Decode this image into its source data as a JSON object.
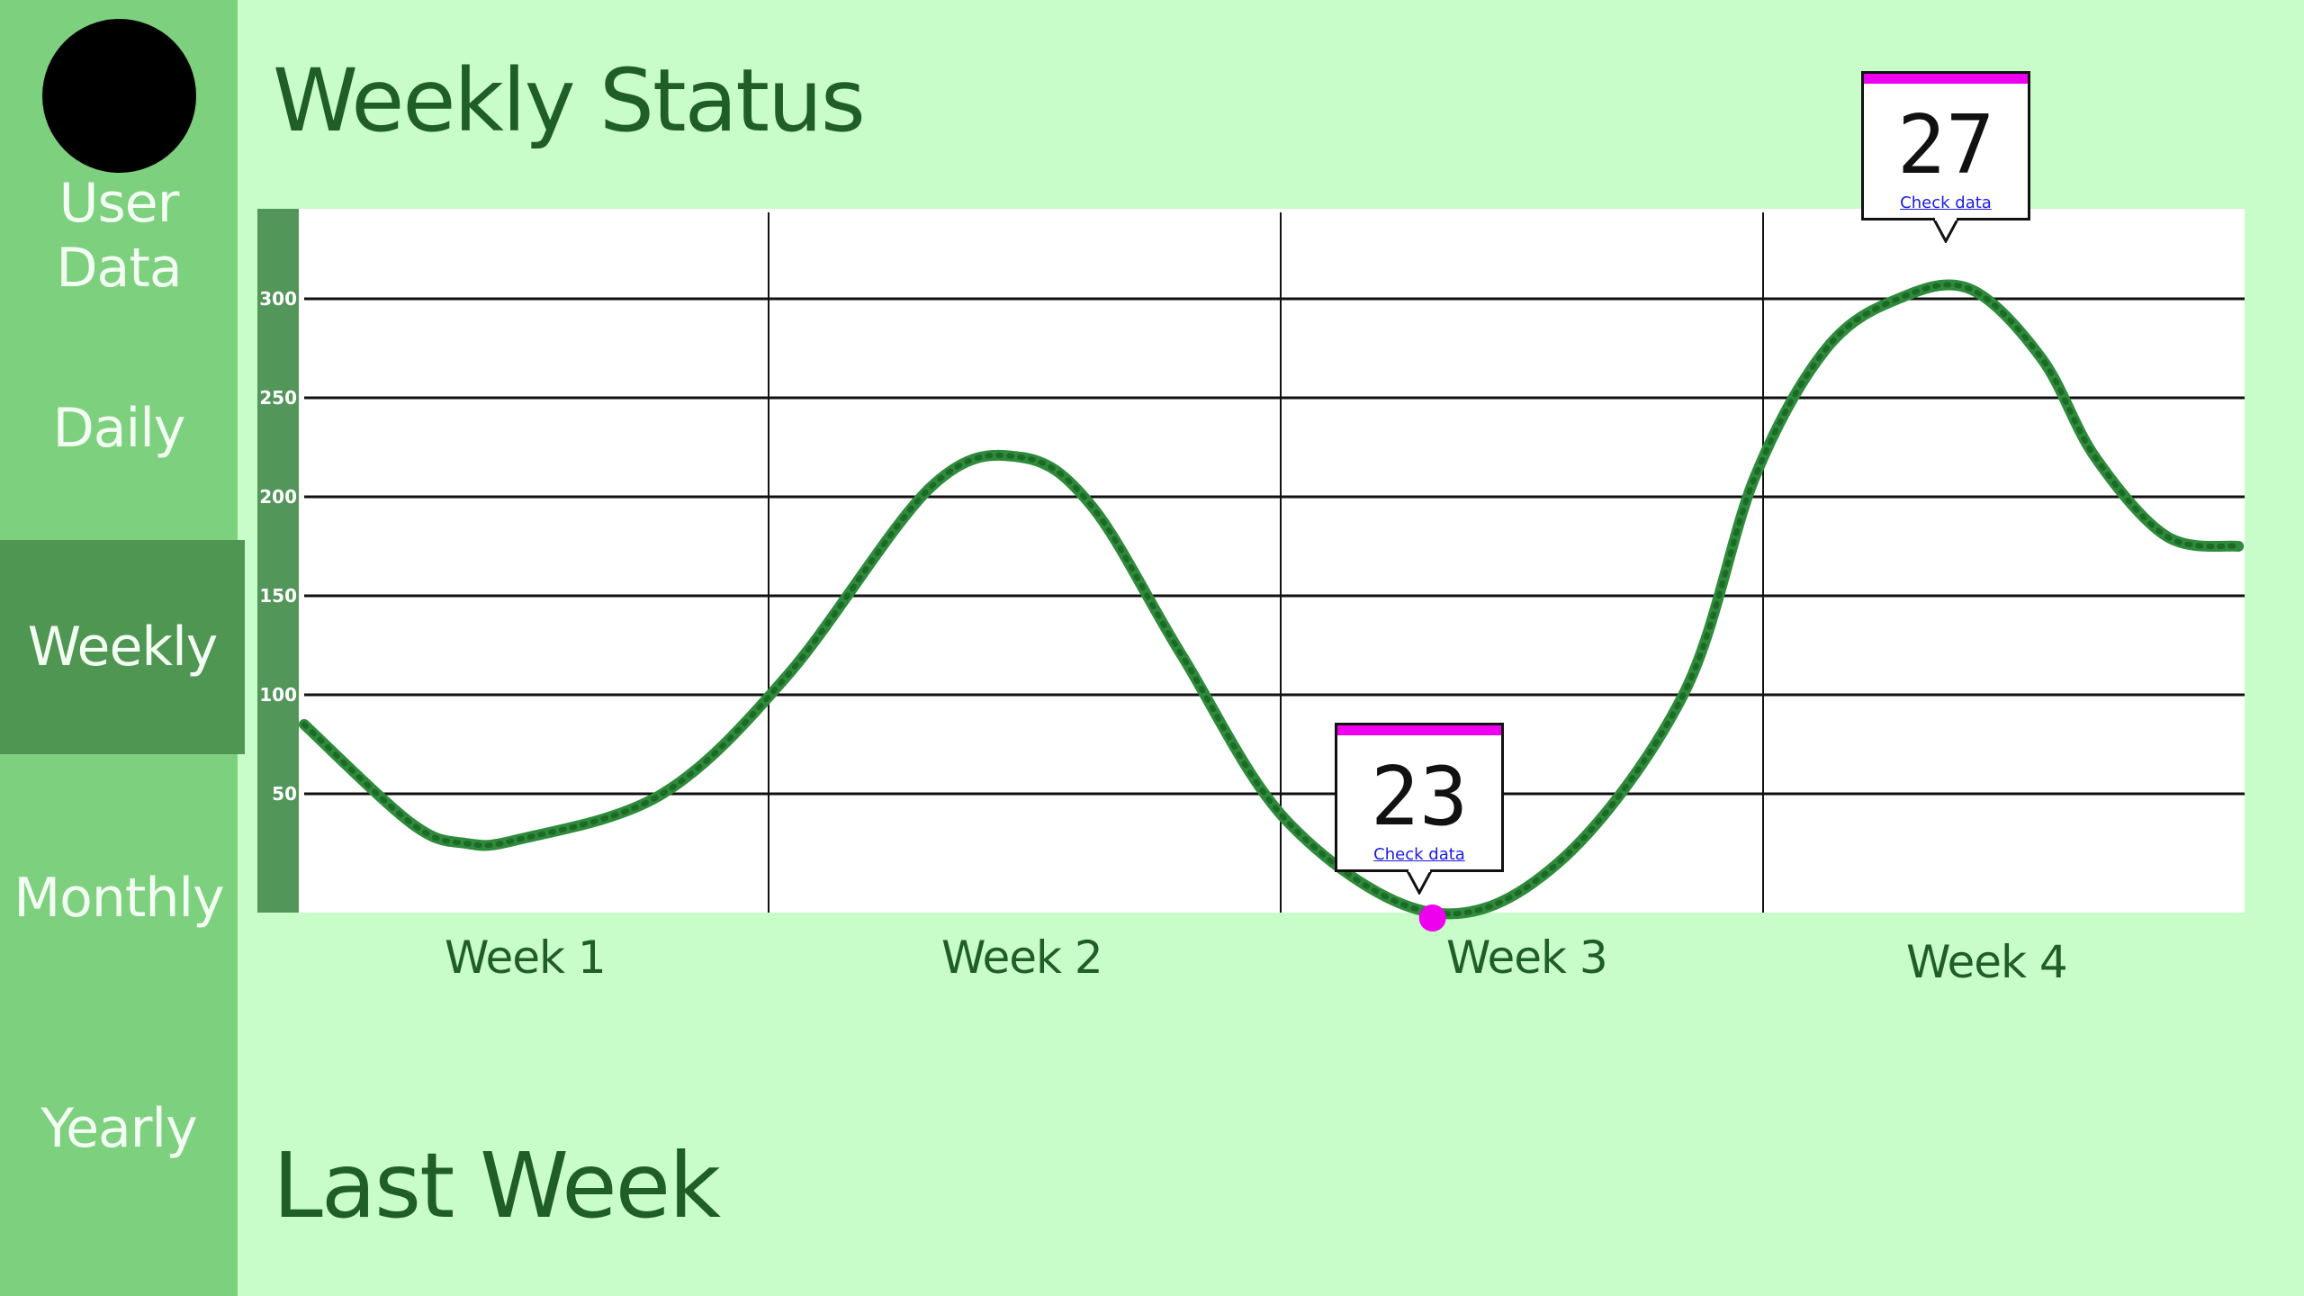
{
  "sidebar": {
    "section_label": "User Data",
    "items": [
      {
        "label": "Daily"
      },
      {
        "label": "Weekly",
        "active": true
      },
      {
        "label": "Monthly"
      },
      {
        "label": "Yearly"
      }
    ]
  },
  "page": {
    "title": "Weekly Status",
    "section_title": "Last Week"
  },
  "colors": {
    "background": "#c8fcc8",
    "sidebar": "#7dd07e",
    "active_item": "#4f9652",
    "heading": "#1f5e26",
    "line": "#2e8b3a",
    "highlight": "#ee00ee"
  },
  "callouts": [
    {
      "value": "23",
      "link": "Check data"
    },
    {
      "value": "27",
      "link": "Check data"
    }
  ],
  "chart_data": {
    "type": "line",
    "x_labels": [
      "Week 1",
      "Week 2",
      "Week 3",
      "Week 4"
    ],
    "y_ticks": [
      50,
      100,
      150,
      200,
      250,
      300
    ],
    "ylim": [
      0,
      330
    ],
    "grid": true,
    "points": [
      [
        0,
        95
      ],
      [
        0.3,
        45
      ],
      [
        0.45,
        35
      ],
      [
        0.6,
        37
      ],
      [
        1.0,
        60
      ],
      [
        1.35,
        120
      ],
      [
        1.75,
        215
      ],
      [
        2.0,
        230
      ],
      [
        2.2,
        205
      ],
      [
        2.45,
        130
      ],
      [
        2.75,
        45
      ],
      [
        3.15,
        0
      ],
      [
        3.5,
        25
      ],
      [
        3.85,
        110
      ],
      [
        4.05,
        220
      ],
      [
        4.25,
        285
      ],
      [
        4.45,
        310
      ],
      [
        4.65,
        315
      ],
      [
        4.85,
        280
      ],
      [
        5.0,
        230
      ],
      [
        5.2,
        190
      ],
      [
        5.4,
        185
      ]
    ],
    "highlight_min": {
      "x": 3.15,
      "y": 0
    }
  }
}
